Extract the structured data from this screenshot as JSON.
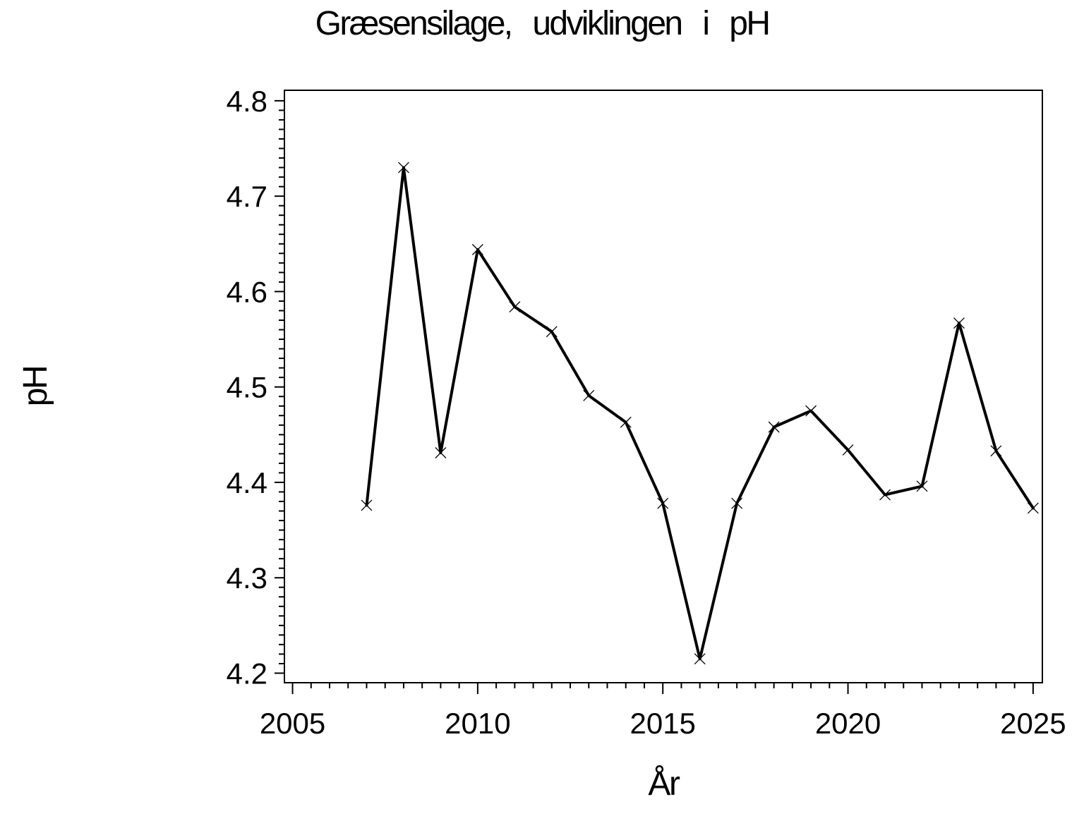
{
  "title": "Græsensilage, udviklingen i pH",
  "chart_data": {
    "type": "line",
    "title": "Græsensilage, udviklingen i pH",
    "xlabel": "År",
    "ylabel": "pH",
    "series_name": "pH",
    "x": [
      2007,
      2008,
      2009,
      2010,
      2011,
      2012,
      2013,
      2014,
      2015,
      2016,
      2017,
      2018,
      2019,
      2020,
      2021,
      2022,
      2023,
      2024,
      2025
    ],
    "y": [
      4.376,
      4.73,
      4.431,
      4.644,
      4.584,
      4.558,
      4.491,
      4.463,
      4.378,
      4.215,
      4.378,
      4.458,
      4.475,
      4.434,
      4.387,
      4.396,
      4.567,
      4.433,
      4.373
    ],
    "x_ticks": [
      2005,
      2010,
      2015,
      2020,
      2025
    ],
    "x_tick_labels": [
      "2005",
      "2010",
      "2015",
      "2020",
      "2025"
    ],
    "x_minor_step": 0.5,
    "y_ticks": [
      4.2,
      4.3,
      4.4,
      4.5,
      4.6,
      4.7,
      4.8
    ],
    "y_tick_labels": [
      "4.2",
      "4.3",
      "4.4",
      "4.5",
      "4.6",
      "4.7",
      "4.8"
    ],
    "y_minor_step": 0.01,
    "xlim": [
      2004.78,
      2025.25
    ],
    "ylim": [
      4.19,
      4.811
    ],
    "grid": false,
    "legend": "none",
    "marker": "x",
    "line_color": "#000000",
    "background_color": "#ffffff"
  }
}
